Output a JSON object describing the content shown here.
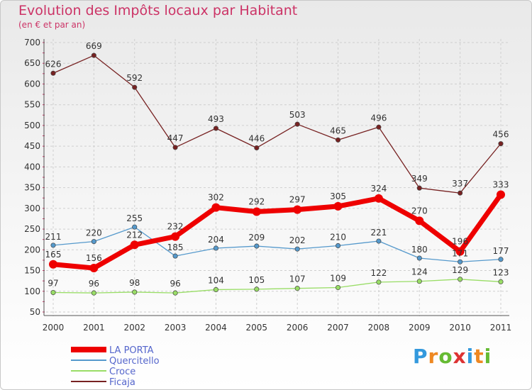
{
  "chart_data": {
    "type": "line",
    "title": "Evolution des Impôts locaux par Habitant",
    "subtitle": "(en € et par an)",
    "x": [
      "2000",
      "2001",
      "2002",
      "2003",
      "2004",
      "2005",
      "2006",
      "2007",
      "2008",
      "2009",
      "2010",
      "2011"
    ],
    "ylim": [
      50,
      700
    ],
    "yticks": [
      50,
      100,
      150,
      200,
      250,
      300,
      350,
      400,
      450,
      500,
      550,
      600,
      650,
      700
    ],
    "grid": true,
    "legend_position": "bottom-left",
    "series": [
      {
        "name": "LA PORTA",
        "color": "#ee0000",
        "values": [
          165,
          156,
          212,
          232,
          302,
          292,
          297,
          305,
          324,
          270,
          196,
          333
        ]
      },
      {
        "name": "Quercitello",
        "color": "#5599cc",
        "values": [
          211,
          220,
          255,
          185,
          204,
          209,
          202,
          210,
          221,
          180,
          171,
          177
        ]
      },
      {
        "name": "Croce",
        "color": "#99dd66",
        "values": [
          97,
          96,
          98,
          96,
          104,
          105,
          107,
          109,
          122,
          124,
          129,
          123
        ]
      },
      {
        "name": "Ficaja",
        "color": "#772222",
        "values": [
          626,
          669,
          592,
          447,
          493,
          446,
          503,
          465,
          496,
          349,
          337,
          456
        ]
      }
    ]
  },
  "brand": {
    "letters": [
      "P",
      "r",
      "o",
      "x",
      "i",
      "t",
      "i"
    ],
    "colors": [
      "#3399dd",
      "#ee8822",
      "#66bb33",
      "#dd3333",
      "#3399dd",
      "#ee8822",
      "#66bb33"
    ]
  }
}
